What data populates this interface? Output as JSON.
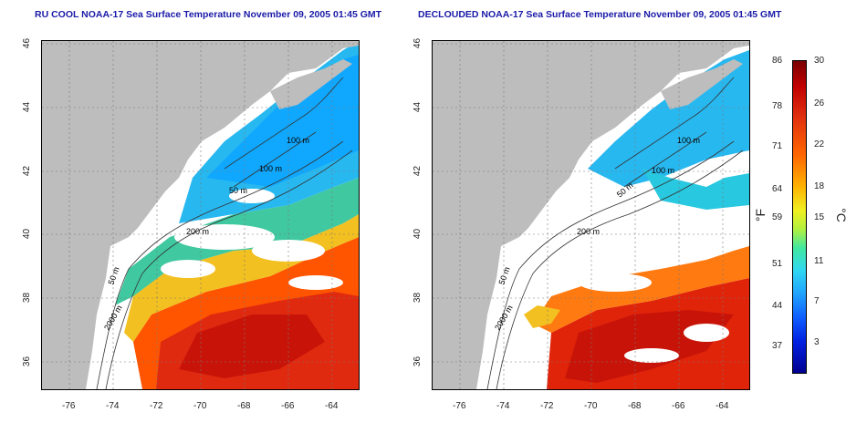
{
  "titles": {
    "left": "RU COOL NOAA-17 Sea Surface Temperature November 09, 2005 01:45 GMT",
    "right": "DECLOUDED NOAA-17 Sea Surface Temperature November 09, 2005 01:45 GMT"
  },
  "axes": {
    "lon_ticks": [
      "-76",
      "-74",
      "-72",
      "-70",
      "-68",
      "-66",
      "-64"
    ],
    "lat_ticks": [
      "46",
      "44",
      "42",
      "40",
      "38",
      "36"
    ]
  },
  "contours": {
    "left": [
      "100 m",
      "100 m",
      "50 m",
      "200 m",
      "50 m",
      "2000 m"
    ],
    "right": [
      "100 m",
      "100 m",
      "50 m",
      "200 m",
      "50 m",
      "2000 m"
    ]
  },
  "colorbar": {
    "fahrenheit_ticks": [
      "86",
      "78",
      "71",
      "64",
      "59",
      "51",
      "44",
      "37"
    ],
    "celsius_ticks": [
      "30",
      "26",
      "22",
      "18",
      "15",
      "11",
      "7",
      "3"
    ],
    "fahrenheit_unit": "°F",
    "celsius_unit": "°C",
    "colors": {
      "land": "#bdbdbd",
      "cloud": "#ffffff",
      "cold": "#00a8ff",
      "warm": "#ff5a00",
      "hot": "#c81400"
    }
  }
}
